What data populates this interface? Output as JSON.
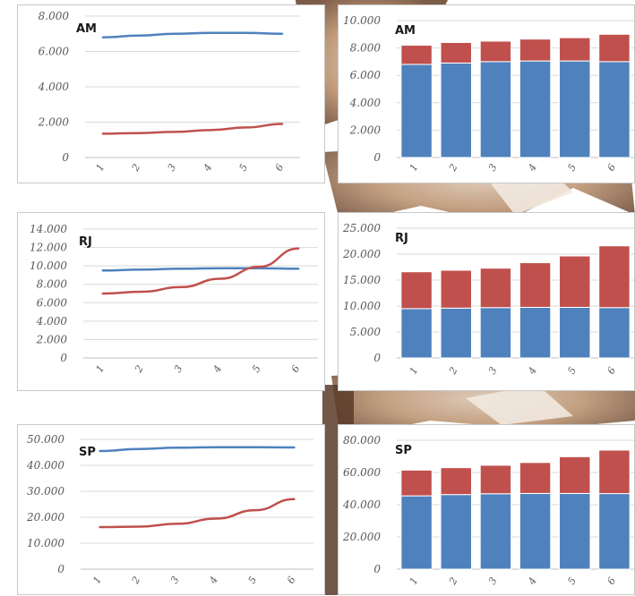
{
  "colors": {
    "series_a": "#4f81bd",
    "series_b": "#c0504d",
    "grid": "#d9d9d9",
    "axis": "#bfbfbf",
    "tick_text": "#595959"
  },
  "chart_data": [
    {
      "id": "am-line",
      "type": "line",
      "title": "AM",
      "categories": [
        "1",
        "2",
        "3",
        "4",
        "5",
        "6"
      ],
      "ylim": [
        0,
        8000
      ],
      "yticks": [
        "0",
        "2.000",
        "4.000",
        "6.000",
        "8.000"
      ],
      "grid": true,
      "series": [
        {
          "color": "#4f81bd",
          "values": [
            6800,
            6900,
            7000,
            7050,
            7050,
            7000
          ]
        },
        {
          "color": "#c0504d",
          "values": [
            1350,
            1380,
            1450,
            1550,
            1700,
            1900
          ]
        }
      ]
    },
    {
      "id": "am-bar",
      "type": "bar",
      "stacked": true,
      "title": "AM",
      "categories": [
        "1",
        "2",
        "3",
        "4",
        "5",
        "6"
      ],
      "ylim": [
        0,
        10000
      ],
      "yticks": [
        "0",
        "2.000",
        "4.000",
        "6.000",
        "8.000",
        "10.000"
      ],
      "grid": true,
      "series": [
        {
          "color": "#4f81bd",
          "values": [
            6800,
            6900,
            7000,
            7050,
            7050,
            7000
          ]
        },
        {
          "color": "#c0504d",
          "values": [
            1400,
            1500,
            1500,
            1600,
            1700,
            2000
          ]
        }
      ]
    },
    {
      "id": "rj-line",
      "type": "line",
      "title": "RJ",
      "categories": [
        "1",
        "2",
        "3",
        "4",
        "5",
        "6"
      ],
      "ylim": [
        0,
        14000
      ],
      "yticks": [
        "0",
        "2.000",
        "4.000",
        "6.000",
        "8.000",
        "10.000",
        "12.000",
        "14.000"
      ],
      "grid": true,
      "series": [
        {
          "color": "#4f81bd",
          "values": [
            9500,
            9600,
            9700,
            9750,
            9750,
            9700
          ]
        },
        {
          "color": "#c0504d",
          "values": [
            7000,
            7200,
            7700,
            8600,
            9900,
            11900
          ]
        }
      ]
    },
    {
      "id": "rj-bar",
      "type": "bar",
      "stacked": true,
      "title": "RJ",
      "categories": [
        "1",
        "2",
        "3",
        "4",
        "5",
        "6"
      ],
      "ylim": [
        0,
        25000
      ],
      "yticks": [
        "0",
        "5.000",
        "10.000",
        "15.000",
        "20.000",
        "25.000"
      ],
      "grid": true,
      "series": [
        {
          "color": "#4f81bd",
          "values": [
            9500,
            9600,
            9700,
            9750,
            9750,
            9700
          ]
        },
        {
          "color": "#c0504d",
          "values": [
            7100,
            7300,
            7600,
            8600,
            9900,
            11900
          ]
        }
      ]
    },
    {
      "id": "sp-line",
      "type": "line",
      "title": "SP",
      "categories": [
        "1",
        "2",
        "3",
        "4",
        "5",
        "6"
      ],
      "ylim": [
        0,
        50000
      ],
      "yticks": [
        "0",
        "10.000",
        "20.000",
        "30.000",
        "40.000",
        "50.000"
      ],
      "grid": true,
      "series": [
        {
          "color": "#4f81bd",
          "values": [
            45500,
            46300,
            46800,
            47000,
            47000,
            46900
          ]
        },
        {
          "color": "#c0504d",
          "values": [
            16200,
            16400,
            17500,
            19500,
            22700,
            27000
          ]
        }
      ]
    },
    {
      "id": "sp-bar",
      "type": "bar",
      "stacked": true,
      "title": "SP",
      "categories": [
        "1",
        "2",
        "3",
        "4",
        "5",
        "6"
      ],
      "ylim": [
        0,
        80000
      ],
      "yticks": [
        "0",
        "20.000",
        "40.000",
        "60.000",
        "80.000"
      ],
      "grid": true,
      "series": [
        {
          "color": "#4f81bd",
          "values": [
            45500,
            46300,
            46800,
            47000,
            47000,
            46900
          ]
        },
        {
          "color": "#c0504d",
          "values": [
            16000,
            16700,
            17700,
            19200,
            22800,
            27000
          ]
        }
      ]
    }
  ]
}
